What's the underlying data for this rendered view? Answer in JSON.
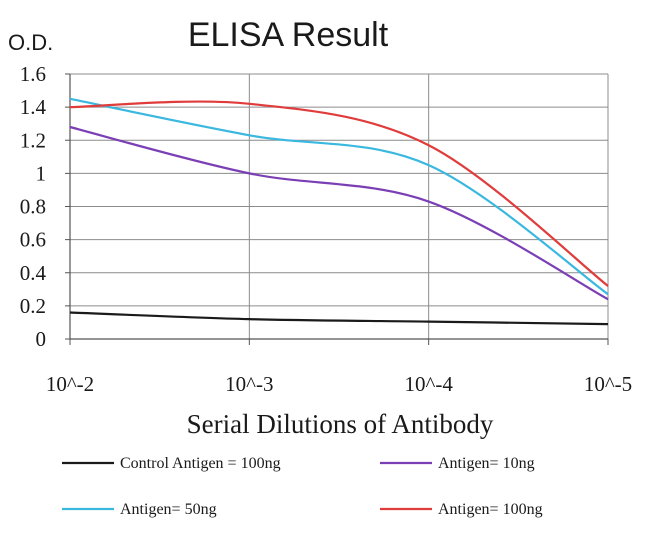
{
  "chart_data": {
    "type": "line",
    "title": "ELISA Result",
    "ylabel": "O.D.",
    "xlabel": "Serial Dilutions of Antibody",
    "categories": [
      "10^-2",
      "10^-3",
      "10^-4",
      "10^-5"
    ],
    "ylim": [
      0,
      1.6
    ],
    "yticks": [
      "0",
      "0.2",
      "0.4",
      "0.6",
      "0.8",
      "1",
      "1.2",
      "1.4",
      "1.6"
    ],
    "grid": true,
    "legend": "bottom",
    "series": [
      {
        "name": "Control Antigen = 100ng",
        "color": "#1a1a1a",
        "values": [
          0.16,
          0.12,
          0.105,
          0.09
        ]
      },
      {
        "name": "Antigen= 10ng",
        "color": "#7b3fb5",
        "values": [
          1.28,
          1.0,
          0.83,
          0.24
        ]
      },
      {
        "name": "Antigen= 50ng",
        "color": "#3ab8e0",
        "values": [
          1.45,
          1.23,
          1.05,
          0.27
        ]
      },
      {
        "name": "Antigen= 100ng",
        "color": "#e03c3c",
        "values": [
          1.4,
          1.42,
          1.17,
          0.32
        ]
      }
    ]
  }
}
